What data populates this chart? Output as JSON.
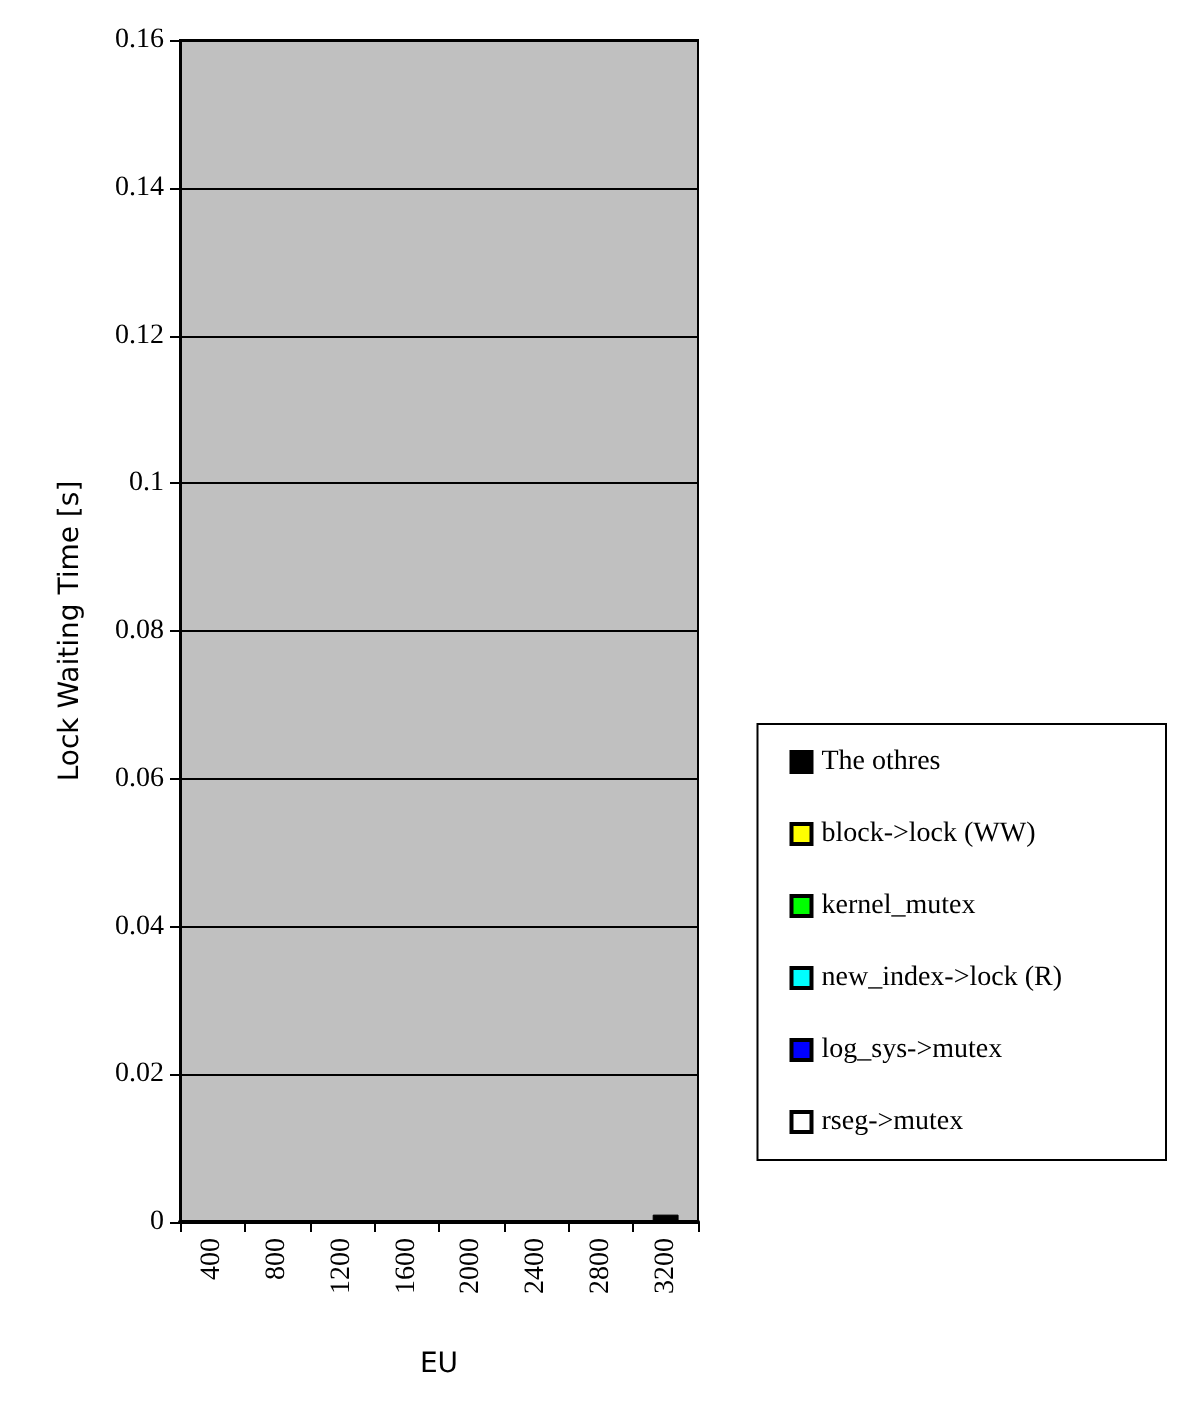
{
  "chart_data": {
    "type": "bar",
    "stacked": true,
    "xlabel": "EU",
    "ylabel": "Lock Waiting Time [s]",
    "categories": [
      "400",
      "800",
      "1200",
      "1600",
      "2000",
      "2400",
      "2800",
      "3200"
    ],
    "series": [
      {
        "name": "rseg->mutex",
        "color": "#ffffff",
        "values": [
          0,
          0,
          0,
          0,
          0,
          0,
          0,
          0
        ]
      },
      {
        "name": "log_sys->mutex",
        "color": "#0000ff",
        "values": [
          0,
          0,
          0,
          0,
          0,
          0,
          0,
          0
        ]
      },
      {
        "name": "new_index->lock (R)",
        "color": "#00ffff",
        "values": [
          0,
          0,
          0,
          0,
          0,
          0,
          0,
          0
        ]
      },
      {
        "name": "kernel_mutex",
        "color": "#00ff00",
        "values": [
          0,
          0,
          0,
          0,
          0,
          0,
          0,
          0
        ]
      },
      {
        "name": "block->lock (WW)",
        "color": "#ffff00",
        "values": [
          0,
          0,
          0,
          0,
          0,
          0,
          0,
          0
        ]
      },
      {
        "name": "The othres",
        "color": "#000000",
        "values": [
          0,
          0,
          0,
          0,
          0,
          0,
          0,
          0.001
        ]
      }
    ],
    "ylim": [
      0,
      0.16
    ],
    "yticks": [
      0,
      0.02,
      0.04,
      0.06,
      0.08,
      0.1,
      0.12,
      0.14,
      0.16
    ],
    "grid": "y",
    "legend": "right"
  }
}
